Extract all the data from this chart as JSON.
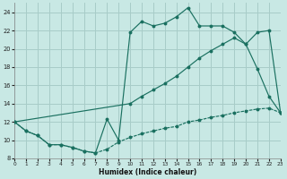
{
  "xlabel": "Humidex (Indice chaleur)",
  "background_color": "#c8e8e4",
  "grid_color": "#a8ccc8",
  "line_color": "#1a7060",
  "line1_x": [
    0,
    1,
    2,
    3,
    4,
    5,
    6,
    7,
    8,
    9,
    10,
    11,
    12,
    13,
    14,
    15,
    16,
    17,
    18,
    19,
    20,
    21,
    22,
    23
  ],
  "line1_y": [
    12,
    11,
    10.5,
    9.5,
    9.5,
    9.2,
    8.8,
    8.6,
    12.3,
    10.0,
    21.8,
    23.0,
    22.5,
    22.8,
    23.5,
    24.5,
    22.5,
    22.5,
    22.5,
    21.8,
    20.5,
    17.8,
    14.8,
    13.0
  ],
  "line2_x": [
    0,
    10,
    11,
    12,
    13,
    14,
    15,
    16,
    17,
    18,
    19,
    20,
    21,
    22,
    23
  ],
  "line2_y": [
    12,
    14.0,
    14.8,
    15.5,
    16.2,
    17.0,
    18.0,
    19.0,
    19.8,
    20.5,
    21.2,
    20.5,
    21.8,
    22.0,
    13.0
  ],
  "line3_x": [
    0,
    1,
    2,
    3,
    4,
    5,
    6,
    7,
    8,
    9,
    10,
    11,
    12,
    13,
    14,
    15,
    16,
    17,
    18,
    19,
    20,
    21,
    22,
    23
  ],
  "line3_y": [
    12,
    11,
    10.5,
    9.5,
    9.5,
    9.2,
    8.8,
    8.6,
    9.0,
    9.8,
    10.3,
    10.7,
    11.0,
    11.3,
    11.5,
    12.0,
    12.2,
    12.5,
    12.7,
    13.0,
    13.2,
    13.4,
    13.5,
    13.0
  ],
  "xlim": [
    0,
    23
  ],
  "ylim": [
    8,
    25
  ],
  "yticks": [
    8,
    10,
    12,
    14,
    16,
    18,
    20,
    22,
    24
  ],
  "xticks": [
    0,
    1,
    2,
    3,
    4,
    5,
    6,
    7,
    8,
    9,
    10,
    11,
    12,
    13,
    14,
    15,
    16,
    17,
    18,
    19,
    20,
    21,
    22,
    23
  ]
}
